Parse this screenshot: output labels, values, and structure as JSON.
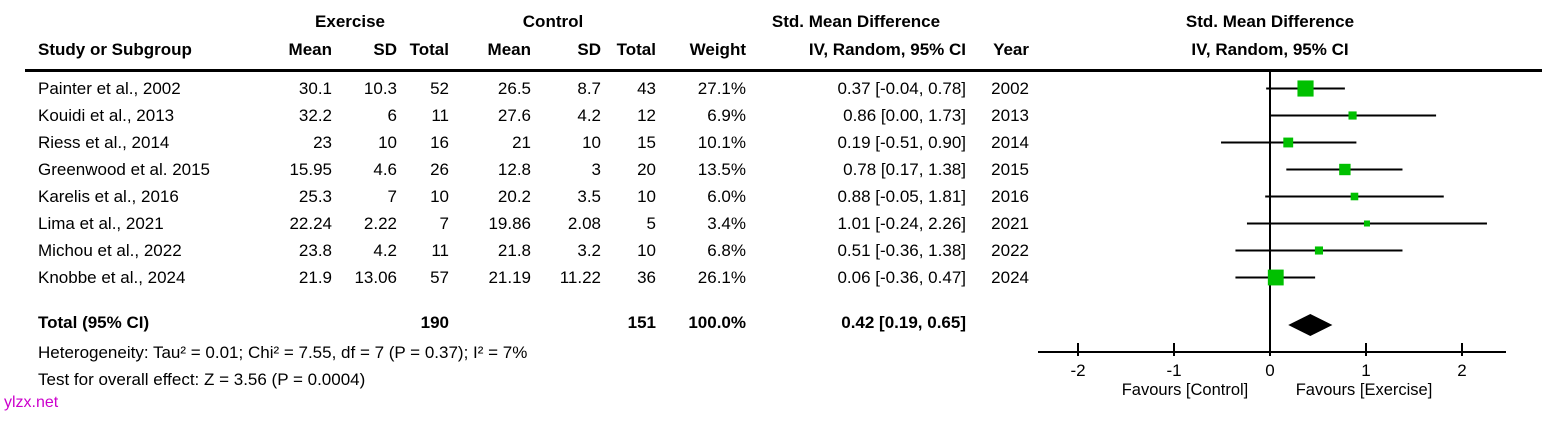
{
  "header": {
    "group_exercise": "Exercise",
    "group_control": "Control",
    "group_smd": "Std. Mean Difference",
    "col_study": "Study or Subgroup",
    "col_mean": "Mean",
    "col_sd": "SD",
    "col_total": "Total",
    "col_weight": "Weight",
    "col_ci": "IV, Random, 95% CI",
    "col_year": "Year",
    "plot_title_line1": "Std. Mean Difference",
    "plot_title_line2": "IV, Random, 95% CI"
  },
  "studies": [
    {
      "name": "Painter et al., 2002",
      "ex_mean": "30.1",
      "ex_sd": "10.3",
      "ex_total": "52",
      "c_mean": "26.5",
      "c_sd": "8.7",
      "c_total": "43",
      "weight": "27.1%",
      "ci_text": "0.37 [-0.04, 0.78]",
      "year": "2002",
      "smd": 0.37,
      "ci_low": -0.04,
      "ci_high": 0.78,
      "weight_pct": 27.1
    },
    {
      "name": "Kouidi et al., 2013",
      "ex_mean": "32.2",
      "ex_sd": "6",
      "ex_total": "11",
      "c_mean": "27.6",
      "c_sd": "4.2",
      "c_total": "12",
      "weight": "6.9%",
      "ci_text": "0.86 [0.00, 1.73]",
      "year": "2013",
      "smd": 0.86,
      "ci_low": 0.0,
      "ci_high": 1.73,
      "weight_pct": 6.9
    },
    {
      "name": "Riess et al., 2014",
      "ex_mean": "23",
      "ex_sd": "10",
      "ex_total": "16",
      "c_mean": "21",
      "c_sd": "10",
      "c_total": "15",
      "weight": "10.1%",
      "ci_text": "0.19 [-0.51, 0.90]",
      "year": "2014",
      "smd": 0.19,
      "ci_low": -0.51,
      "ci_high": 0.9,
      "weight_pct": 10.1
    },
    {
      "name": "Greenwood et al. 2015",
      "ex_mean": "15.95",
      "ex_sd": "4.6",
      "ex_total": "26",
      "c_mean": "12.8",
      "c_sd": "3",
      "c_total": "20",
      "weight": "13.5%",
      "ci_text": "0.78 [0.17, 1.38]",
      "year": "2015",
      "smd": 0.78,
      "ci_low": 0.17,
      "ci_high": 1.38,
      "weight_pct": 13.5
    },
    {
      "name": "Karelis et al., 2016",
      "ex_mean": "25.3",
      "ex_sd": "7",
      "ex_total": "10",
      "c_mean": "20.2",
      "c_sd": "3.5",
      "c_total": "10",
      "weight": "6.0%",
      "ci_text": "0.88 [-0.05, 1.81]",
      "year": "2016",
      "smd": 0.88,
      "ci_low": -0.05,
      "ci_high": 1.81,
      "weight_pct": 6.0
    },
    {
      "name": "Lima et al., 2021",
      "ex_mean": "22.24",
      "ex_sd": "2.22",
      "ex_total": "7",
      "c_mean": "19.86",
      "c_sd": "2.08",
      "c_total": "5",
      "weight": "3.4%",
      "ci_text": "1.01 [-0.24, 2.26]",
      "year": "2021",
      "smd": 1.01,
      "ci_low": -0.24,
      "ci_high": 2.26,
      "weight_pct": 3.4
    },
    {
      "name": "Michou et al., 2022",
      "ex_mean": "23.8",
      "ex_sd": "4.2",
      "ex_total": "11",
      "c_mean": "21.8",
      "c_sd": "3.2",
      "c_total": "10",
      "weight": "6.8%",
      "ci_text": "0.51 [-0.36, 1.38]",
      "year": "2022",
      "smd": 0.51,
      "ci_low": -0.36,
      "ci_high": 1.38,
      "weight_pct": 6.8
    },
    {
      "name": "Knobbe et al., 2024",
      "ex_mean": "21.9",
      "ex_sd": "13.06",
      "ex_total": "57",
      "c_mean": "21.19",
      "c_sd": "11.22",
      "c_total": "36",
      "weight": "26.1%",
      "ci_text": "0.06 [-0.36, 0.47]",
      "year": "2024",
      "smd": 0.06,
      "ci_low": -0.36,
      "ci_high": 0.47,
      "weight_pct": 26.1
    }
  ],
  "total": {
    "label": "Total (95% CI)",
    "ex_total": "190",
    "c_total": "151",
    "weight": "100.0%",
    "ci_text": "0.42 [0.19, 0.65]",
    "smd": 0.42,
    "ci_low": 0.19,
    "ci_high": 0.65
  },
  "footer": {
    "heterogeneity": "Heterogeneity: Tau² = 0.01; Chi² = 7.55, df = 7 (P = 0.37); I² = 7%",
    "overall_effect": "Test for overall effect: Z = 3.56 (P = 0.0004)"
  },
  "axis": {
    "ticks": [
      "-2",
      "-1",
      "0",
      "1",
      "2"
    ],
    "favours_left": "Favours [Control]",
    "favours_right": "Favours [Exercise]"
  },
  "watermark": "ylzx.net",
  "colors": {
    "square": "#00C000",
    "diamond": "#000000",
    "line": "#000000",
    "watermark": "#CC00CC"
  },
  "chart_data": {
    "type": "scatter",
    "subtype": "forest-plot",
    "title": "Std. Mean Difference — IV, Random, 95% CI",
    "xlabel": "Favours [Control] | Favours [Exercise]",
    "xlim": [
      -2.4,
      2.45
    ],
    "x_ticks": [
      -2,
      -1,
      0,
      1,
      2
    ],
    "grid": false,
    "series": [
      {
        "name": "Painter et al., 2002",
        "x": 0.37,
        "ci": [
          -0.04,
          0.78
        ],
        "weight_pct": 27.1,
        "year": 2002
      },
      {
        "name": "Kouidi et al., 2013",
        "x": 0.86,
        "ci": [
          0.0,
          1.73
        ],
        "weight_pct": 6.9,
        "year": 2013
      },
      {
        "name": "Riess et al., 2014",
        "x": 0.19,
        "ci": [
          -0.51,
          0.9
        ],
        "weight_pct": 10.1,
        "year": 2014
      },
      {
        "name": "Greenwood et al. 2015",
        "x": 0.78,
        "ci": [
          0.17,
          1.38
        ],
        "weight_pct": 13.5,
        "year": 2015
      },
      {
        "name": "Karelis et al., 2016",
        "x": 0.88,
        "ci": [
          -0.05,
          1.81
        ],
        "weight_pct": 6.0,
        "year": 2016
      },
      {
        "name": "Lima et al., 2021",
        "x": 1.01,
        "ci": [
          -0.24,
          2.26
        ],
        "weight_pct": 3.4,
        "year": 2021
      },
      {
        "name": "Michou et al., 2022",
        "x": 0.51,
        "ci": [
          -0.36,
          1.38
        ],
        "weight_pct": 6.8,
        "year": 2022
      },
      {
        "name": "Knobbe et al., 2024",
        "x": 0.06,
        "ci": [
          -0.36,
          0.47
        ],
        "weight_pct": 26.1,
        "year": 2024
      }
    ],
    "total_diamond": {
      "x": 0.42,
      "ci": [
        0.19,
        0.65
      ]
    }
  }
}
